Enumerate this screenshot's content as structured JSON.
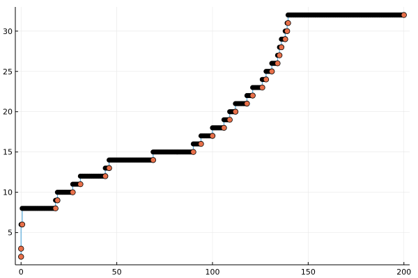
{
  "chart_data": {
    "type": "scatter",
    "title": "",
    "xlabel": "",
    "ylabel": "",
    "xlim": [
      -3,
      203
    ],
    "ylim": [
      1,
      33
    ],
    "x_ticks": [
      0,
      50,
      100,
      150,
      200
    ],
    "x_tick_labels": [
      "0",
      "50",
      "100",
      "150",
      "200"
    ],
    "y_ticks": [
      5,
      10,
      15,
      20,
      25,
      30
    ],
    "y_tick_labels": [
      "5",
      "10",
      "15",
      "20",
      "25",
      "30"
    ],
    "grid": true,
    "legend": "none",
    "colors": {
      "line": "#56a8d8",
      "points_dark": "#000000",
      "points_accent": "#e8704a",
      "axis": "#000000",
      "grid": "#e6e6e6"
    },
    "series": [
      {
        "kind": "staircase-line",
        "steps": [
          {
            "x_start": 0,
            "x_end": 0,
            "y": 2
          },
          {
            "x_start": 0,
            "x_end": 0,
            "y": 3
          },
          {
            "x_start": 0,
            "x_end": 0.6,
            "y": 6
          },
          {
            "x_start": 0.6,
            "x_end": 18,
            "y": 8
          },
          {
            "x_start": 18,
            "x_end": 19,
            "y": 9
          },
          {
            "x_start": 19,
            "x_end": 27,
            "y": 10
          },
          {
            "x_start": 27,
            "x_end": 31,
            "y": 11
          },
          {
            "x_start": 31,
            "x_end": 44,
            "y": 12
          },
          {
            "x_start": 44,
            "x_end": 46,
            "y": 13
          },
          {
            "x_start": 46,
            "x_end": 69,
            "y": 14
          },
          {
            "x_start": 69,
            "x_end": 90,
            "y": 15
          },
          {
            "x_start": 90,
            "x_end": 94,
            "y": 16
          },
          {
            "x_start": 94,
            "x_end": 100,
            "y": 17
          },
          {
            "x_start": 100,
            "x_end": 106,
            "y": 18
          },
          {
            "x_start": 106,
            "x_end": 109,
            "y": 19
          },
          {
            "x_start": 109,
            "x_end": 112,
            "y": 20
          },
          {
            "x_start": 112,
            "x_end": 118,
            "y": 21
          },
          {
            "x_start": 118,
            "x_end": 121,
            "y": 22
          },
          {
            "x_start": 121,
            "x_end": 126,
            "y": 23
          },
          {
            "x_start": 126,
            "x_end": 128,
            "y": 24
          },
          {
            "x_start": 128,
            "x_end": 131,
            "y": 25
          },
          {
            "x_start": 131,
            "x_end": 134,
            "y": 26
          },
          {
            "x_start": 134,
            "x_end": 135,
            "y": 27
          },
          {
            "x_start": 135,
            "x_end": 136,
            "y": 28
          },
          {
            "x_start": 136,
            "x_end": 138,
            "y": 29
          },
          {
            "x_start": 138,
            "x_end": 139,
            "y": 30
          },
          {
            "x_start": 139,
            "x_end": 139.5,
            "y": 31
          },
          {
            "x_start": 139.5,
            "x_end": 200,
            "y": 32
          }
        ]
      }
    ],
    "accent_points": [
      {
        "x": 0,
        "y": 2
      },
      {
        "x": 0,
        "y": 3
      },
      {
        "x": 0.6,
        "y": 6
      },
      {
        "x": 18,
        "y": 8
      },
      {
        "x": 19,
        "y": 9
      },
      {
        "x": 27,
        "y": 10
      },
      {
        "x": 31,
        "y": 11
      },
      {
        "x": 44,
        "y": 12
      },
      {
        "x": 46,
        "y": 13
      },
      {
        "x": 69,
        "y": 14
      },
      {
        "x": 90,
        "y": 15
      },
      {
        "x": 94,
        "y": 16
      },
      {
        "x": 100,
        "y": 17
      },
      {
        "x": 106,
        "y": 18
      },
      {
        "x": 109,
        "y": 19
      },
      {
        "x": 112,
        "y": 20
      },
      {
        "x": 118,
        "y": 21
      },
      {
        "x": 121,
        "y": 22
      },
      {
        "x": 126,
        "y": 23
      },
      {
        "x": 128,
        "y": 24
      },
      {
        "x": 131,
        "y": 25
      },
      {
        "x": 134,
        "y": 26
      },
      {
        "x": 135,
        "y": 27
      },
      {
        "x": 136,
        "y": 28
      },
      {
        "x": 138,
        "y": 29
      },
      {
        "x": 139,
        "y": 30
      },
      {
        "x": 139.5,
        "y": 31
      },
      {
        "x": 200,
        "y": 32
      }
    ]
  }
}
